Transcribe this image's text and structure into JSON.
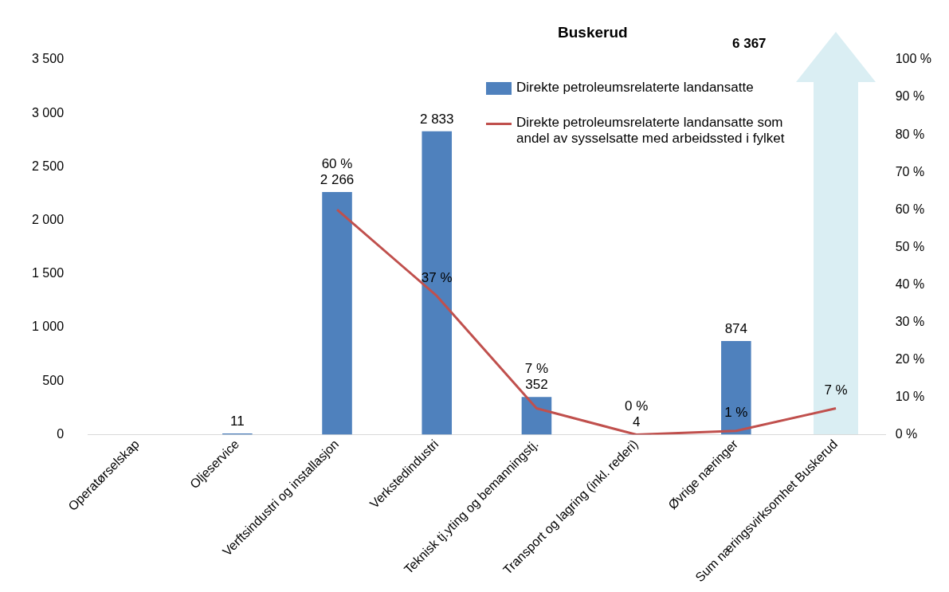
{
  "chart_data": {
    "type": "bar",
    "title": "Buskerud",
    "categories": [
      "Operatørselskap",
      "Oljeservice",
      "Verftsindustri og installasjon",
      "Verkstedindustri",
      "Teknisk tj.yting og bemanningstj.",
      "Transport og lagring (inkl. rederi)",
      "Øvrige næringer",
      "Sum næringsvirksomhet Buskerud"
    ],
    "series": [
      {
        "name": "Direkte petroleumsrelaterte landansatte",
        "color": "#4f81bd",
        "values": [
          null,
          11,
          2266,
          2833,
          352,
          4,
          874,
          null
        ],
        "value_labels": [
          null,
          "11",
          "2 266",
          "2 833",
          "352",
          "4",
          "874",
          null
        ]
      },
      {
        "type": "line",
        "axis": "y2",
        "name": "Direkte petroleumsrelaterte landansatte som andel av sysselsatte med arbeidssted i fylket",
        "color": "#c0504d",
        "values": [
          null,
          null,
          60,
          37,
          7,
          0,
          1,
          7
        ],
        "value_labels": [
          null,
          null,
          "60 %",
          "37 %",
          "7 %",
          "0 %",
          "1 %",
          "7 %"
        ]
      }
    ],
    "ylim": [
      0,
      3500
    ],
    "yticks": [
      0,
      500,
      {
        "value": 1000,
        "label": "1 000"
      },
      {
        "value": 1500,
        "label": "1 500"
      },
      {
        "value": 2000,
        "label": "2 000"
      },
      {
        "value": 2500,
        "label": "2 500"
      },
      {
        "value": 3000,
        "label": "3 000"
      },
      {
        "value": 3500,
        "label": "3 500"
      }
    ],
    "y2lim": [
      0,
      100
    ],
    "y2ticks": [
      {
        "value": 0,
        "label": "0 %"
      },
      {
        "value": 10,
        "label": "10 %"
      },
      {
        "value": 20,
        "label": "20 %"
      },
      {
        "value": 30,
        "label": "30 %"
      },
      {
        "value": 40,
        "label": "40 %"
      },
      {
        "value": 50,
        "label": "50 %"
      },
      {
        "value": 60,
        "label": "60 %"
      },
      {
        "value": 70,
        "label": "70 %"
      },
      {
        "value": 80,
        "label": "80 %"
      },
      {
        "value": 90,
        "label": "90 %"
      },
      {
        "value": 100,
        "label": "100 %"
      }
    ],
    "annotations": [
      "6 367"
    ],
    "grid": false,
    "legend": "top right",
    "marker": "none"
  }
}
